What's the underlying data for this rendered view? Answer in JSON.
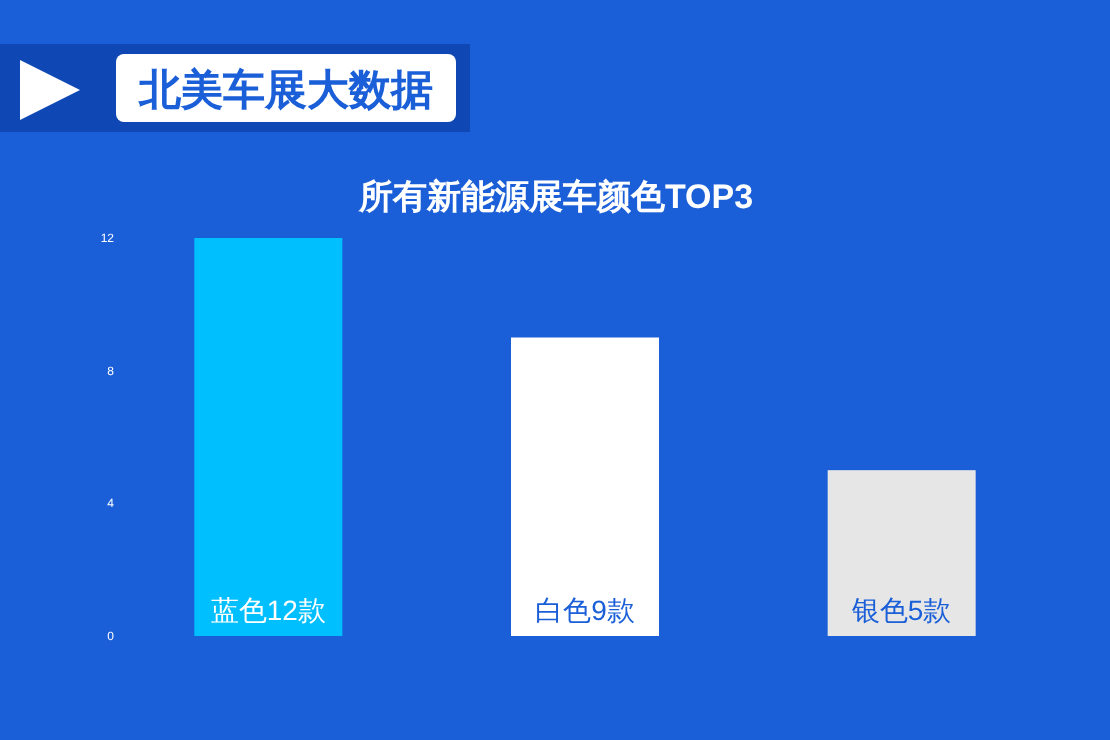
{
  "chart_data": {
    "type": "bar",
    "title": "所有新能源展车颜色TOP3",
    "subtitle": "北美车展大数据",
    "categories": [
      null,
      null,
      null
    ],
    "values": [
      12,
      9,
      5
    ],
    "colors": [
      "#00bfff",
      "#ffffff",
      "#e6e6e6"
    ],
    "value_labels": [
      "蓝色12款",
      "白色9款",
      "银色5款"
    ],
    "ylim": [
      0,
      12
    ],
    "yticks": [
      0,
      4,
      8,
      12
    ]
  }
}
